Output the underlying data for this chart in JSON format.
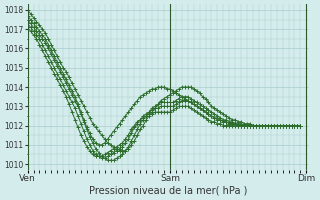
{
  "bg_color": "#d4ecec",
  "grid_color": "#aacccc",
  "line_color": "#2d6e2d",
  "xlabel": "Pression niveau de la mer( hPa )",
  "xtick_labels": [
    "Ven",
    "Sam",
    "Dim"
  ],
  "yticks": [
    1010,
    1011,
    1012,
    1013,
    1014,
    1015,
    1016,
    1017,
    1018
  ],
  "ylim": [
    1009.7,
    1018.3
  ],
  "xlim": [
    0,
    95
  ],
  "vlines": [
    0,
    48,
    94
  ],
  "series": [
    [
      1018.0,
      1017.8,
      1017.6,
      1017.4,
      1017.2,
      1017.0,
      1016.8,
      1016.5,
      1016.2,
      1015.9,
      1015.6,
      1015.3,
      1015.0,
      1014.8,
      1014.5,
      1014.2,
      1013.9,
      1013.6,
      1013.3,
      1013.0,
      1012.7,
      1012.4,
      1012.1,
      1011.9,
      1011.7,
      1011.5,
      1011.3,
      1011.1,
      1011.0,
      1010.9,
      1010.8,
      1010.7,
      1010.7,
      1010.7,
      1010.8,
      1011.0,
      1011.2,
      1011.5,
      1011.8,
      1012.0,
      1012.3,
      1012.5,
      1012.7,
      1012.9,
      1013.1,
      1013.3,
      1013.4,
      1013.5,
      1013.6,
      1013.7,
      1013.8,
      1013.9,
      1014.0,
      1014.0,
      1014.0,
      1014.0,
      1013.9,
      1013.8,
      1013.7,
      1013.5,
      1013.4,
      1013.2,
      1013.0,
      1012.9,
      1012.8,
      1012.7,
      1012.6,
      1012.5,
      1012.4,
      1012.3,
      1012.3,
      1012.2,
      1012.2,
      1012.1,
      1012.1,
      1012.1,
      1012.0,
      1012.0,
      1012.0,
      1012.0,
      1012.0,
      1012.0,
      1012.0,
      1012.0,
      1012.0,
      1012.0,
      1012.0,
      1012.0,
      1012.0,
      1012.0,
      1012.0,
      1012.0,
      1012.0
    ],
    [
      1017.5,
      1017.3,
      1017.1,
      1016.9,
      1016.7,
      1016.5,
      1016.3,
      1016.0,
      1015.7,
      1015.4,
      1015.1,
      1014.8,
      1014.5,
      1014.2,
      1013.9,
      1013.6,
      1013.3,
      1013.0,
      1012.6,
      1012.2,
      1011.8,
      1011.4,
      1011.1,
      1010.8,
      1010.6,
      1010.4,
      1010.3,
      1010.2,
      1010.2,
      1010.2,
      1010.3,
      1010.4,
      1010.5,
      1010.7,
      1010.9,
      1011.2,
      1011.5,
      1011.8,
      1012.1,
      1012.3,
      1012.5,
      1012.7,
      1012.9,
      1013.0,
      1013.1,
      1013.2,
      1013.2,
      1013.2,
      1013.2,
      1013.2,
      1013.3,
      1013.4,
      1013.5,
      1013.5,
      1013.5,
      1013.4,
      1013.3,
      1013.2,
      1013.1,
      1013.0,
      1012.9,
      1012.8,
      1012.7,
      1012.6,
      1012.5,
      1012.4,
      1012.3,
      1012.3,
      1012.2,
      1012.2,
      1012.1,
      1012.1,
      1012.1,
      1012.0,
      1012.0,
      1012.0,
      1012.0,
      1012.0,
      1012.0,
      1012.0,
      1012.0,
      1012.0,
      1012.0,
      1012.0,
      1012.0,
      1012.0,
      1012.0,
      1012.0,
      1012.0,
      1012.0,
      1012.0,
      1012.0,
      1012.0
    ],
    [
      1017.3,
      1017.1,
      1016.9,
      1016.7,
      1016.5,
      1016.2,
      1015.9,
      1015.6,
      1015.3,
      1015.0,
      1014.7,
      1014.4,
      1014.1,
      1013.8,
      1013.5,
      1013.2,
      1012.9,
      1012.5,
      1012.1,
      1011.7,
      1011.3,
      1011.0,
      1010.7,
      1010.5,
      1010.4,
      1010.3,
      1010.3,
      1010.4,
      1010.5,
      1010.6,
      1010.7,
      1010.8,
      1010.9,
      1011.1,
      1011.3,
      1011.6,
      1011.9,
      1012.1,
      1012.3,
      1012.5,
      1012.6,
      1012.7,
      1012.8,
      1012.9,
      1012.9,
      1013.0,
      1013.0,
      1013.0,
      1013.0,
      1013.0,
      1013.1,
      1013.2,
      1013.3,
      1013.3,
      1013.3,
      1013.2,
      1013.1,
      1013.0,
      1012.9,
      1012.8,
      1012.7,
      1012.6,
      1012.5,
      1012.4,
      1012.4,
      1012.3,
      1012.2,
      1012.2,
      1012.1,
      1012.1,
      1012.1,
      1012.0,
      1012.0,
      1012.0,
      1012.0,
      1012.0,
      1012.0,
      1012.0,
      1012.0,
      1012.0,
      1012.0,
      1012.0,
      1012.0,
      1012.0,
      1012.0,
      1012.0,
      1012.0,
      1012.0,
      1012.0,
      1012.0,
      1012.0,
      1012.0,
      1012.0
    ],
    [
      1017.1,
      1016.9,
      1016.7,
      1016.5,
      1016.2,
      1015.9,
      1015.6,
      1015.3,
      1015.0,
      1014.7,
      1014.4,
      1014.1,
      1013.8,
      1013.5,
      1013.1,
      1012.7,
      1012.3,
      1011.9,
      1011.5,
      1011.2,
      1010.9,
      1010.7,
      1010.5,
      1010.4,
      1010.4,
      1010.4,
      1010.5,
      1010.6,
      1010.7,
      1010.8,
      1010.9,
      1011.0,
      1011.1,
      1011.3,
      1011.5,
      1011.8,
      1012.0,
      1012.2,
      1012.3,
      1012.4,
      1012.5,
      1012.6,
      1012.6,
      1012.7,
      1012.7,
      1012.7,
      1012.7,
      1012.7,
      1012.7,
      1012.8,
      1012.9,
      1013.0,
      1013.0,
      1013.0,
      1013.0,
      1012.9,
      1012.8,
      1012.7,
      1012.6,
      1012.5,
      1012.4,
      1012.3,
      1012.2,
      1012.2,
      1012.1,
      1012.1,
      1012.0,
      1012.0,
      1012.0,
      1012.0,
      1012.0,
      1012.0,
      1012.0,
      1012.0,
      1012.0,
      1012.0,
      1012.0,
      1012.0,
      1012.0,
      1012.0,
      1012.0,
      1012.0,
      1012.0,
      1012.0,
      1012.0,
      1012.0,
      1012.0,
      1012.0,
      1012.0,
      1012.0,
      1012.0,
      1012.0,
      1012.0
    ],
    [
      1017.7,
      1017.5,
      1017.3,
      1017.1,
      1016.9,
      1016.7,
      1016.5,
      1016.2,
      1015.9,
      1015.6,
      1015.3,
      1015.0,
      1014.7,
      1014.4,
      1014.1,
      1013.8,
      1013.5,
      1013.1,
      1012.7,
      1012.3,
      1011.9,
      1011.6,
      1011.3,
      1011.1,
      1011.0,
      1011.0,
      1011.1,
      1011.3,
      1011.5,
      1011.7,
      1011.9,
      1012.1,
      1012.3,
      1012.5,
      1012.7,
      1012.9,
      1013.1,
      1013.3,
      1013.5,
      1013.6,
      1013.7,
      1013.8,
      1013.9,
      1013.9,
      1014.0,
      1014.0,
      1014.0,
      1013.9,
      1013.9,
      1013.8,
      1013.7,
      1013.6,
      1013.5,
      1013.4,
      1013.3,
      1013.2,
      1013.1,
      1013.0,
      1012.9,
      1012.8,
      1012.7,
      1012.6,
      1012.5,
      1012.4,
      1012.3,
      1012.3,
      1012.2,
      1012.2,
      1012.1,
      1012.1,
      1012.1,
      1012.0,
      1012.0,
      1012.0,
      1012.0,
      1012.0,
      1012.0,
      1012.0,
      1012.0,
      1012.0,
      1012.0,
      1012.0,
      1012.0,
      1012.0,
      1012.0,
      1012.0,
      1012.0,
      1012.0,
      1012.0,
      1012.0,
      1012.0,
      1012.0,
      1012.0
    ]
  ]
}
